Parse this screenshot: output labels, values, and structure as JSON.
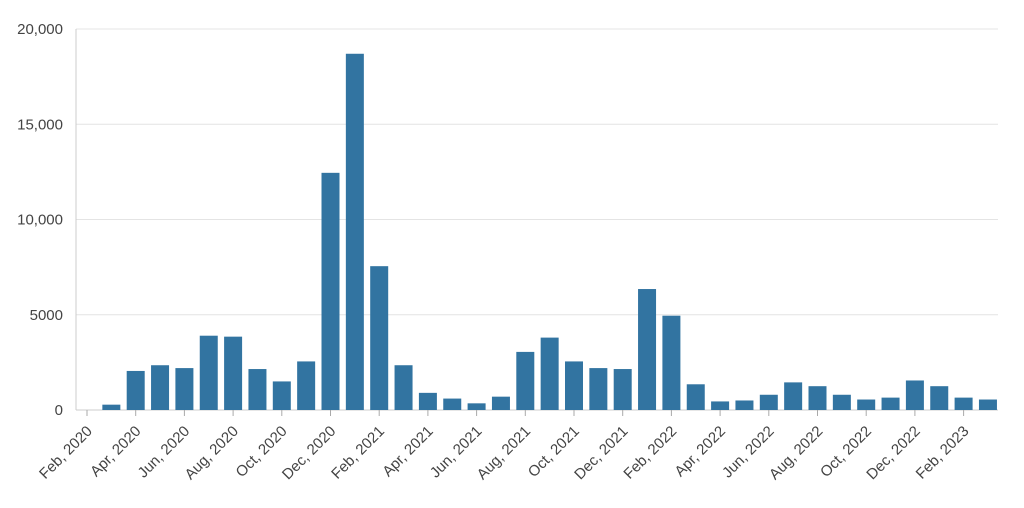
{
  "colors": {
    "bar": "#3274a1",
    "grid": "#e4e4e4",
    "text": "#444444"
  },
  "chart_data": {
    "type": "bar",
    "title": "",
    "xlabel": "",
    "ylabel": "",
    "ylim": [
      0,
      20000
    ],
    "grid": true,
    "legend": "none",
    "y_ticks": [
      {
        "value": 0,
        "label": "0"
      },
      {
        "value": 5000,
        "label": "5000"
      },
      {
        "value": 10000,
        "label": "10,000"
      },
      {
        "value": 15000,
        "label": "15,000"
      },
      {
        "value": 20000,
        "label": "20,000"
      }
    ],
    "x_tick_labels": [
      "Feb, 2020",
      "Apr, 2020",
      "Jun, 2020",
      "Aug, 2020",
      "Oct, 2020",
      "Dec, 2020",
      "Feb, 2021",
      "Apr, 2021",
      "Jun, 2021",
      "Aug, 2021",
      "Oct, 2021",
      "Dec, 2021",
      "Feb, 2022",
      "Apr, 2022",
      "Jun, 2022",
      "Aug, 2022",
      "Oct, 2022",
      "Dec, 2022",
      "Feb, 2023"
    ],
    "categories": [
      "2020-02",
      "2020-03",
      "2020-04",
      "2020-05",
      "2020-06",
      "2020-07",
      "2020-08",
      "2020-09",
      "2020-10",
      "2020-11",
      "2020-12",
      "2021-01",
      "2021-02",
      "2021-03",
      "2021-04",
      "2021-05",
      "2021-06",
      "2021-07",
      "2021-08",
      "2021-09",
      "2021-10",
      "2021-11",
      "2021-12",
      "2022-01",
      "2022-02",
      "2022-03",
      "2022-04",
      "2022-05",
      "2022-06",
      "2022-07",
      "2022-08",
      "2022-09",
      "2022-10",
      "2022-11",
      "2022-12",
      "2023-01",
      "2023-02",
      "2023-03"
    ],
    "values": [
      0,
      280,
      2050,
      2350,
      2200,
      3900,
      3850,
      2150,
      1500,
      2550,
      12450,
      18700,
      7550,
      2350,
      900,
      600,
      350,
      700,
      3050,
      3800,
      2550,
      2200,
      2150,
      6350,
      4950,
      1350,
      450,
      500,
      800,
      1450,
      1250,
      800,
      550,
      650,
      1550,
      1250,
      650,
      550
    ]
  }
}
